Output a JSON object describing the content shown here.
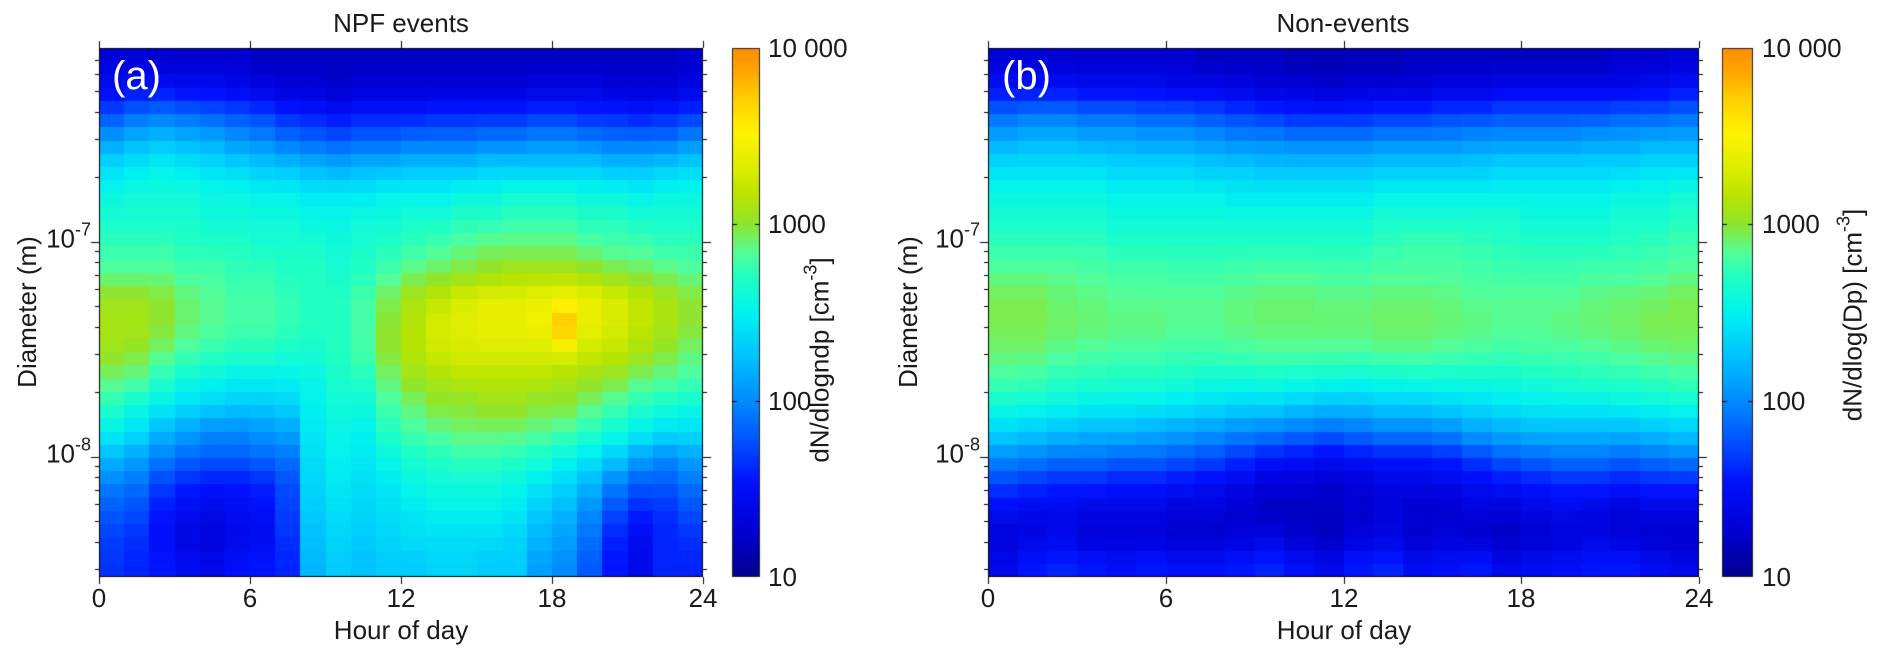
{
  "figure": {
    "background": "#ffffff",
    "panels": [
      {
        "corner_label": "(a)",
        "title": "NPF events",
        "xlabel": "Hour of day",
        "ylabel": "Diameter  (m)",
        "x_tick_labels": [
          "0",
          "6",
          "12",
          "18",
          "24"
        ],
        "y_tick_base": "10",
        "y_tick_exponents": [
          "-7",
          "-8"
        ],
        "colorbar_tick_labels": [
          "10 000",
          "1000",
          "100",
          "10"
        ],
        "colorbar_label_prefix": "dN/dlogndp [cm",
        "colorbar_label_exp": "-3",
        "colorbar_label_suffix": "]"
      },
      {
        "corner_label": "(b)",
        "title": "Non-events",
        "xlabel": "Hour of day",
        "ylabel": "Diameter (m)",
        "x_tick_labels": [
          "0",
          "6",
          "12",
          "18",
          "24"
        ],
        "y_tick_base": "10",
        "y_tick_exponents": [
          "-7",
          "-8"
        ],
        "colorbar_tick_labels": [
          "10 000",
          "1000",
          "100",
          "10"
        ],
        "colorbar_label_prefix": "dN/dlog(Dp) [cm",
        "colorbar_label_exp": "-3",
        "colorbar_label_suffix": "]"
      }
    ]
  },
  "colormap": {
    "stops": [
      [
        0.0,
        "#00008f"
      ],
      [
        0.09,
        "#0000d5"
      ],
      [
        0.18,
        "#0012ff"
      ],
      [
        0.26,
        "#0055ff"
      ],
      [
        0.333,
        "#008cff"
      ],
      [
        0.42,
        "#00c4ff"
      ],
      [
        0.5,
        "#00f2f0"
      ],
      [
        0.565,
        "#1fffc4"
      ],
      [
        0.61,
        "#4fff9e"
      ],
      [
        0.667,
        "#8fe52e"
      ],
      [
        0.72,
        "#b8e400"
      ],
      [
        0.78,
        "#e0ee00"
      ],
      [
        0.84,
        "#fff200"
      ],
      [
        0.9,
        "#ffd300"
      ],
      [
        0.95,
        "#ffaa00"
      ],
      [
        1.0,
        "#ff8c00"
      ]
    ]
  },
  "chart_data": [
    {
      "type": "heatmap",
      "title": "NPF events",
      "xlabel": "Hour of day",
      "ylabel": "Diameter (m)",
      "colorbar_label": "dN/dlogndp [cm-3]",
      "x_range_hours": [
        0,
        24
      ],
      "x_ticks": [
        0,
        6,
        12,
        18,
        24
      ],
      "y_scale": "log",
      "y_ticks_m": [
        1e-07,
        1e-08
      ],
      "y_range_log10_m": [
        -8.56,
        -6.1
      ],
      "color_scale": "log",
      "color_range_cm3": [
        10,
        10000
      ],
      "color_ticks": [
        10,
        100,
        1000,
        10000
      ],
      "rows_order": "largest_diameter_first",
      "values_log10_cm3": [
        [
          1.3,
          1.3,
          1.25,
          1.25,
          1.25,
          1.25,
          1.2,
          1.2,
          1.2,
          1.2,
          1.2,
          1.2,
          1.2,
          1.2,
          1.2,
          1.2,
          1.2,
          1.2,
          1.2,
          1.2,
          1.2,
          1.2,
          1.2,
          1.25
        ],
        [
          1.45,
          1.5,
          1.5,
          1.45,
          1.45,
          1.4,
          1.35,
          1.3,
          1.3,
          1.25,
          1.3,
          1.3,
          1.3,
          1.3,
          1.3,
          1.3,
          1.3,
          1.35,
          1.35,
          1.35,
          1.3,
          1.3,
          1.3,
          1.35
        ],
        [
          1.75,
          1.85,
          1.9,
          1.85,
          1.8,
          1.75,
          1.7,
          1.6,
          1.55,
          1.5,
          1.55,
          1.55,
          1.55,
          1.6,
          1.6,
          1.6,
          1.6,
          1.65,
          1.65,
          1.6,
          1.6,
          1.55,
          1.6,
          1.65
        ],
        [
          2.1,
          2.2,
          2.25,
          2.2,
          2.15,
          2.05,
          2.0,
          1.9,
          1.85,
          1.8,
          1.85,
          1.85,
          1.9,
          1.9,
          1.9,
          1.95,
          1.95,
          2.0,
          2.0,
          1.95,
          1.9,
          1.9,
          1.9,
          2.0
        ],
        [
          2.4,
          2.45,
          2.5,
          2.45,
          2.4,
          2.35,
          2.3,
          2.25,
          2.2,
          2.15,
          2.2,
          2.2,
          2.25,
          2.25,
          2.25,
          2.3,
          2.3,
          2.3,
          2.3,
          2.3,
          2.25,
          2.25,
          2.3,
          2.35
        ],
        [
          2.55,
          2.6,
          2.6,
          2.6,
          2.55,
          2.55,
          2.5,
          2.5,
          2.45,
          2.45,
          2.45,
          2.5,
          2.5,
          2.5,
          2.55,
          2.55,
          2.6,
          2.6,
          2.6,
          2.55,
          2.55,
          2.5,
          2.55,
          2.55
        ],
        [
          2.65,
          2.65,
          2.65,
          2.65,
          2.6,
          2.6,
          2.6,
          2.6,
          2.55,
          2.55,
          2.6,
          2.6,
          2.65,
          2.65,
          2.7,
          2.7,
          2.75,
          2.75,
          2.75,
          2.7,
          2.7,
          2.65,
          2.65,
          2.65
        ],
        [
          2.75,
          2.75,
          2.75,
          2.7,
          2.7,
          2.7,
          2.65,
          2.65,
          2.65,
          2.6,
          2.65,
          2.7,
          2.75,
          2.8,
          2.85,
          2.9,
          2.9,
          2.9,
          2.9,
          2.85,
          2.8,
          2.8,
          2.75,
          2.75
        ],
        [
          2.85,
          2.85,
          2.85,
          2.8,
          2.8,
          2.75,
          2.75,
          2.7,
          2.7,
          2.65,
          2.7,
          2.8,
          2.9,
          2.95,
          3.0,
          3.05,
          3.1,
          3.1,
          3.1,
          3.05,
          3.0,
          2.95,
          2.9,
          2.85
        ],
        [
          3.05,
          3.05,
          3.0,
          2.9,
          2.85,
          2.8,
          2.8,
          2.75,
          2.7,
          2.7,
          2.8,
          2.95,
          3.1,
          3.2,
          3.3,
          3.35,
          3.35,
          3.4,
          3.45,
          3.4,
          3.3,
          3.2,
          3.1,
          3.0
        ],
        [
          3.1,
          3.1,
          3.0,
          2.9,
          2.85,
          2.8,
          2.8,
          2.75,
          2.7,
          2.7,
          2.8,
          3.0,
          3.15,
          3.3,
          3.35,
          3.4,
          3.4,
          3.45,
          3.8,
          3.4,
          3.3,
          3.2,
          3.1,
          3.0
        ],
        [
          3.05,
          3.0,
          2.9,
          2.8,
          2.75,
          2.7,
          2.7,
          2.65,
          2.65,
          2.7,
          2.8,
          3.0,
          3.15,
          3.25,
          3.3,
          3.3,
          3.3,
          3.3,
          3.35,
          3.25,
          3.2,
          3.1,
          3.0,
          2.9
        ],
        [
          2.9,
          2.85,
          2.7,
          2.6,
          2.55,
          2.5,
          2.5,
          2.5,
          2.55,
          2.65,
          2.7,
          2.9,
          3.05,
          3.1,
          3.15,
          3.15,
          3.15,
          3.15,
          3.1,
          3.05,
          3.0,
          2.9,
          2.85,
          2.8
        ],
        [
          2.7,
          2.6,
          2.5,
          2.4,
          2.35,
          2.3,
          2.3,
          2.35,
          2.5,
          2.6,
          2.6,
          2.8,
          2.9,
          3.0,
          3.0,
          3.05,
          3.05,
          3.0,
          3.0,
          2.9,
          2.8,
          2.7,
          2.65,
          2.6
        ],
        [
          2.5,
          2.4,
          2.2,
          2.1,
          2.0,
          2.0,
          2.05,
          2.1,
          2.45,
          2.55,
          2.5,
          2.7,
          2.8,
          2.85,
          2.9,
          2.9,
          2.9,
          2.85,
          2.8,
          2.7,
          2.6,
          2.5,
          2.4,
          2.4
        ],
        [
          2.2,
          2.1,
          1.95,
          1.85,
          1.8,
          1.8,
          1.85,
          1.9,
          2.4,
          2.5,
          2.45,
          2.55,
          2.65,
          2.7,
          2.75,
          2.75,
          2.7,
          2.65,
          2.55,
          2.45,
          2.3,
          2.1,
          2.0,
          2.1
        ],
        [
          1.95,
          1.9,
          1.7,
          1.6,
          1.55,
          1.55,
          1.6,
          1.75,
          2.35,
          2.45,
          2.4,
          2.45,
          2.55,
          2.6,
          2.6,
          2.6,
          2.55,
          2.45,
          2.35,
          2.2,
          1.95,
          1.8,
          1.8,
          1.9
        ],
        [
          1.8,
          1.75,
          1.55,
          1.45,
          1.4,
          1.45,
          1.5,
          1.7,
          2.3,
          2.4,
          2.35,
          2.4,
          2.45,
          2.5,
          2.5,
          2.5,
          2.45,
          2.3,
          2.2,
          2.0,
          1.75,
          1.6,
          1.65,
          1.75
        ],
        [
          1.7,
          1.65,
          1.5,
          1.35,
          1.3,
          1.4,
          1.45,
          1.65,
          2.25,
          2.35,
          2.3,
          2.35,
          2.4,
          2.4,
          2.4,
          2.4,
          2.35,
          2.2,
          2.1,
          1.9,
          1.6,
          1.45,
          1.6,
          1.65
        ],
        [
          1.65,
          1.6,
          1.55,
          1.45,
          1.4,
          1.5,
          1.55,
          1.6,
          2.2,
          2.3,
          2.25,
          2.3,
          2.3,
          2.35,
          2.35,
          2.3,
          2.3,
          2.1,
          2.0,
          1.8,
          1.55,
          1.4,
          1.6,
          1.6
        ]
      ]
    },
    {
      "type": "heatmap",
      "title": "Non-events",
      "xlabel": "Hour of day",
      "ylabel": "Diameter (m)",
      "colorbar_label": "dN/dlog(Dp) [cm-3]",
      "x_range_hours": [
        0,
        24
      ],
      "x_ticks": [
        0,
        6,
        12,
        18,
        24
      ],
      "y_scale": "log",
      "y_ticks_m": [
        1e-07,
        1e-08
      ],
      "y_range_log10_m": [
        -8.56,
        -6.1
      ],
      "color_scale": "log",
      "color_range_cm3": [
        10,
        10000
      ],
      "color_ticks": [
        10,
        100,
        1000,
        10000
      ],
      "rows_order": "largest_diameter_first",
      "values_log10_cm3": [
        [
          1.3,
          1.3,
          1.25,
          1.25,
          1.25,
          1.25,
          1.25,
          1.2,
          1.2,
          1.2,
          1.15,
          1.15,
          1.15,
          1.15,
          1.2,
          1.2,
          1.2,
          1.2,
          1.2,
          1.2,
          1.2,
          1.25,
          1.25,
          1.3
        ],
        [
          1.5,
          1.5,
          1.5,
          1.45,
          1.45,
          1.45,
          1.4,
          1.4,
          1.35,
          1.3,
          1.3,
          1.25,
          1.3,
          1.3,
          1.3,
          1.35,
          1.35,
          1.4,
          1.4,
          1.4,
          1.4,
          1.4,
          1.45,
          1.5
        ],
        [
          1.85,
          1.9,
          1.9,
          1.85,
          1.85,
          1.8,
          1.8,
          1.75,
          1.7,
          1.65,
          1.6,
          1.6,
          1.6,
          1.65,
          1.65,
          1.7,
          1.7,
          1.75,
          1.75,
          1.75,
          1.75,
          1.8,
          1.8,
          1.85
        ],
        [
          2.15,
          2.2,
          2.2,
          2.15,
          2.15,
          2.1,
          2.1,
          2.05,
          2.0,
          2.0,
          1.95,
          1.95,
          1.95,
          2.0,
          2.0,
          2.0,
          2.05,
          2.05,
          2.05,
          2.05,
          2.1,
          2.1,
          2.15,
          2.15
        ],
        [
          2.4,
          2.4,
          2.4,
          2.4,
          2.35,
          2.35,
          2.35,
          2.3,
          2.3,
          2.25,
          2.25,
          2.25,
          2.25,
          2.3,
          2.3,
          2.3,
          2.3,
          2.35,
          2.35,
          2.35,
          2.35,
          2.35,
          2.4,
          2.4
        ],
        [
          2.55,
          2.55,
          2.55,
          2.55,
          2.5,
          2.5,
          2.5,
          2.5,
          2.45,
          2.45,
          2.45,
          2.45,
          2.45,
          2.5,
          2.5,
          2.5,
          2.5,
          2.5,
          2.5,
          2.5,
          2.5,
          2.55,
          2.55,
          2.6
        ],
        [
          2.65,
          2.65,
          2.65,
          2.65,
          2.6,
          2.6,
          2.6,
          2.6,
          2.6,
          2.6,
          2.6,
          2.6,
          2.6,
          2.65,
          2.65,
          2.65,
          2.65,
          2.65,
          2.6,
          2.6,
          2.6,
          2.65,
          2.65,
          2.7
        ],
        [
          2.75,
          2.75,
          2.75,
          2.75,
          2.7,
          2.7,
          2.7,
          2.7,
          2.7,
          2.7,
          2.7,
          2.7,
          2.7,
          2.75,
          2.78,
          2.78,
          2.75,
          2.72,
          2.7,
          2.7,
          2.7,
          2.72,
          2.75,
          2.78
        ],
        [
          2.85,
          2.85,
          2.85,
          2.82,
          2.8,
          2.8,
          2.78,
          2.78,
          2.8,
          2.82,
          2.82,
          2.8,
          2.8,
          2.82,
          2.82,
          2.82,
          2.8,
          2.78,
          2.78,
          2.78,
          2.8,
          2.8,
          2.82,
          2.85
        ],
        [
          2.95,
          2.95,
          2.9,
          2.88,
          2.85,
          2.85,
          2.85,
          2.85,
          2.88,
          2.9,
          2.9,
          2.88,
          2.88,
          2.9,
          2.9,
          2.88,
          2.85,
          2.85,
          2.85,
          2.85,
          2.88,
          2.9,
          2.92,
          2.95
        ],
        [
          2.95,
          2.95,
          2.92,
          2.9,
          2.88,
          2.88,
          2.85,
          2.85,
          2.88,
          2.9,
          2.9,
          2.9,
          2.9,
          2.92,
          2.92,
          2.9,
          2.88,
          2.85,
          2.85,
          2.88,
          2.9,
          2.92,
          2.95,
          2.95
        ],
        [
          2.9,
          2.9,
          2.85,
          2.82,
          2.8,
          2.8,
          2.78,
          2.78,
          2.8,
          2.82,
          2.82,
          2.82,
          2.82,
          2.85,
          2.85,
          2.82,
          2.8,
          2.78,
          2.8,
          2.8,
          2.82,
          2.85,
          2.88,
          2.9
        ],
        [
          2.8,
          2.78,
          2.72,
          2.7,
          2.68,
          2.68,
          2.65,
          2.62,
          2.62,
          2.65,
          2.62,
          2.6,
          2.58,
          2.6,
          2.62,
          2.62,
          2.62,
          2.62,
          2.65,
          2.68,
          2.7,
          2.72,
          2.75,
          2.78
        ],
        [
          2.6,
          2.58,
          2.55,
          2.5,
          2.5,
          2.48,
          2.45,
          2.4,
          2.35,
          2.35,
          2.3,
          2.25,
          2.25,
          2.3,
          2.3,
          2.35,
          2.4,
          2.45,
          2.48,
          2.5,
          2.5,
          2.52,
          2.55,
          2.58
        ],
        [
          2.35,
          2.3,
          2.25,
          2.2,
          2.2,
          2.15,
          2.1,
          2.05,
          2.0,
          1.95,
          1.9,
          1.85,
          1.9,
          1.95,
          1.95,
          2.0,
          2.1,
          2.15,
          2.2,
          2.2,
          2.2,
          2.2,
          2.25,
          2.3
        ],
        [
          2.0,
          1.95,
          1.9,
          1.9,
          1.85,
          1.85,
          1.8,
          1.75,
          1.65,
          1.55,
          1.5,
          1.45,
          1.5,
          1.55,
          1.55,
          1.6,
          1.7,
          1.8,
          1.85,
          1.9,
          1.9,
          1.85,
          1.9,
          1.95
        ],
        [
          1.7,
          1.65,
          1.6,
          1.6,
          1.55,
          1.55,
          1.5,
          1.45,
          1.4,
          1.3,
          1.3,
          1.25,
          1.3,
          1.35,
          1.35,
          1.4,
          1.45,
          1.5,
          1.55,
          1.6,
          1.6,
          1.55,
          1.6,
          1.6
        ],
        [
          1.45,
          1.4,
          1.4,
          1.35,
          1.35,
          1.35,
          1.3,
          1.3,
          1.25,
          1.2,
          1.2,
          1.2,
          1.25,
          1.3,
          1.25,
          1.25,
          1.3,
          1.3,
          1.35,
          1.4,
          1.35,
          1.3,
          1.35,
          1.35
        ],
        [
          1.3,
          1.35,
          1.4,
          1.3,
          1.3,
          1.3,
          1.25,
          1.25,
          1.3,
          1.35,
          1.25,
          1.2,
          1.3,
          1.35,
          1.25,
          1.3,
          1.25,
          1.2,
          1.25,
          1.3,
          1.35,
          1.3,
          1.25,
          1.25
        ],
        [
          1.4,
          1.55,
          1.6,
          1.55,
          1.5,
          1.55,
          1.5,
          1.5,
          1.55,
          1.6,
          1.5,
          1.4,
          1.55,
          1.6,
          1.45,
          1.5,
          1.55,
          1.4,
          1.45,
          1.5,
          1.55,
          1.55,
          1.45,
          1.4
        ]
      ]
    }
  ]
}
